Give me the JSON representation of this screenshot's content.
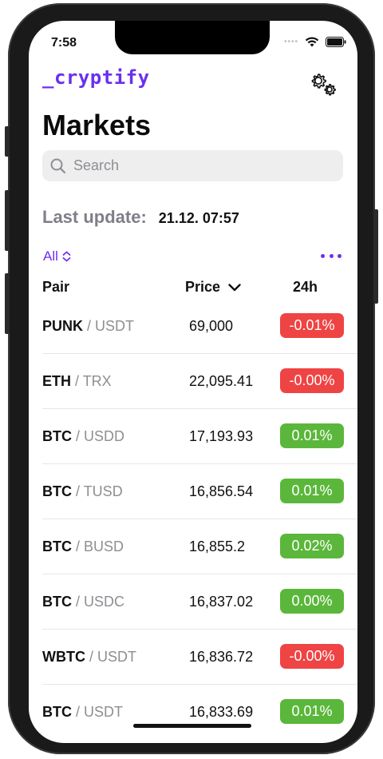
{
  "status": {
    "time": "7:58"
  },
  "header": {
    "logo": "_cryptify",
    "title": "Markets"
  },
  "search": {
    "placeholder": "Search"
  },
  "last_update": {
    "label": "Last update:",
    "value": "21.12. 07:57"
  },
  "filter": {
    "label": "All"
  },
  "table": {
    "headers": {
      "pair": "Pair",
      "price": "Price",
      "change": "24h"
    },
    "rows": [
      {
        "base": "PUNK",
        "quote": "USDT",
        "price": "69,000",
        "change": "-0.01%",
        "trend": "neg"
      },
      {
        "base": "ETH",
        "quote": "TRX",
        "price": "22,095.41",
        "change": "-0.00%",
        "trend": "neg"
      },
      {
        "base": "BTC",
        "quote": "USDD",
        "price": "17,193.93",
        "change": "0.01%",
        "trend": "pos"
      },
      {
        "base": "BTC",
        "quote": "TUSD",
        "price": "16,856.54",
        "change": "0.01%",
        "trend": "pos"
      },
      {
        "base": "BTC",
        "quote": "BUSD",
        "price": "16,855.2",
        "change": "0.02%",
        "trend": "pos"
      },
      {
        "base": "BTC",
        "quote": "USDC",
        "price": "16,837.02",
        "change": "0.00%",
        "trend": "pos"
      },
      {
        "base": "WBTC",
        "quote": "USDT",
        "price": "16,836.72",
        "change": "-0.00%",
        "trend": "neg"
      },
      {
        "base": "BTC",
        "quote": "USDT",
        "price": "16,833.69",
        "change": "0.01%",
        "trend": "pos"
      }
    ]
  },
  "colors": {
    "accent": "#6a2ff0",
    "negative": "#ef4444",
    "positive": "#5bb73b"
  },
  "icons": [
    "settings-gears-icon",
    "search-icon",
    "chevron-up-down-icon",
    "more-dots-icon",
    "chevron-down-icon",
    "wifi-icon",
    "battery-icon"
  ]
}
